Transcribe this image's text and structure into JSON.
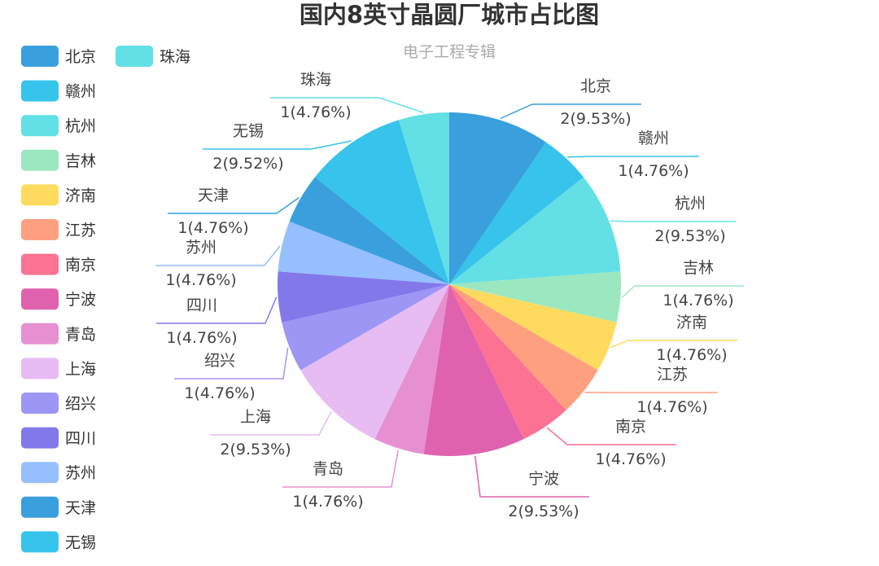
{
  "chart_data": {
    "type": "pie",
    "title": "国内8英寸晶圆厂城市占比图",
    "subtitle": "电子工程专辑",
    "legend_position": "left",
    "slices": [
      {
        "name": "北京",
        "value": 2,
        "percent_label": "2(9.53%)",
        "color": "#3a9fdd"
      },
      {
        "name": "赣州",
        "value": 1,
        "percent_label": "1(4.76%)",
        "color": "#36c3ec"
      },
      {
        "name": "杭州",
        "value": 2,
        "percent_label": "2(9.53%)",
        "color": "#62e0e6"
      },
      {
        "name": "吉林",
        "value": 1,
        "percent_label": "1(4.76%)",
        "color": "#9be8c0"
      },
      {
        "name": "济南",
        "value": 1,
        "percent_label": "1(4.76%)",
        "color": "#fedb5e"
      },
      {
        "name": "江苏",
        "value": 1,
        "percent_label": "1(4.76%)",
        "color": "#fe9f7f"
      },
      {
        "name": "南京",
        "value": 1,
        "percent_label": "1(4.76%)",
        "color": "#fb7293"
      },
      {
        "name": "宁波",
        "value": 2,
        "percent_label": "2(9.53%)",
        "color": "#e062ae"
      },
      {
        "name": "青岛",
        "value": 1,
        "percent_label": "1(4.76%)",
        "color": "#e690d1"
      },
      {
        "name": "上海",
        "value": 2,
        "percent_label": "2(9.53%)",
        "color": "#e7bcf3"
      },
      {
        "name": "绍兴",
        "value": 1,
        "percent_label": "1(4.76%)",
        "color": "#9d96f5"
      },
      {
        "name": "四川",
        "value": 1,
        "percent_label": "1(4.76%)",
        "color": "#8378ea"
      },
      {
        "name": "苏州",
        "value": 1,
        "percent_label": "1(4.76%)",
        "color": "#96bfff"
      },
      {
        "name": "天津",
        "value": 1,
        "percent_label": "1(4.76%)",
        "color": "#3a9fdd"
      },
      {
        "name": "无锡",
        "value": 2,
        "percent_label": "2(9.52%)",
        "color": "#36c3ec"
      },
      {
        "name": "珠海",
        "value": 1,
        "percent_label": "1(4.76%)",
        "color": "#62e0e6"
      }
    ]
  }
}
